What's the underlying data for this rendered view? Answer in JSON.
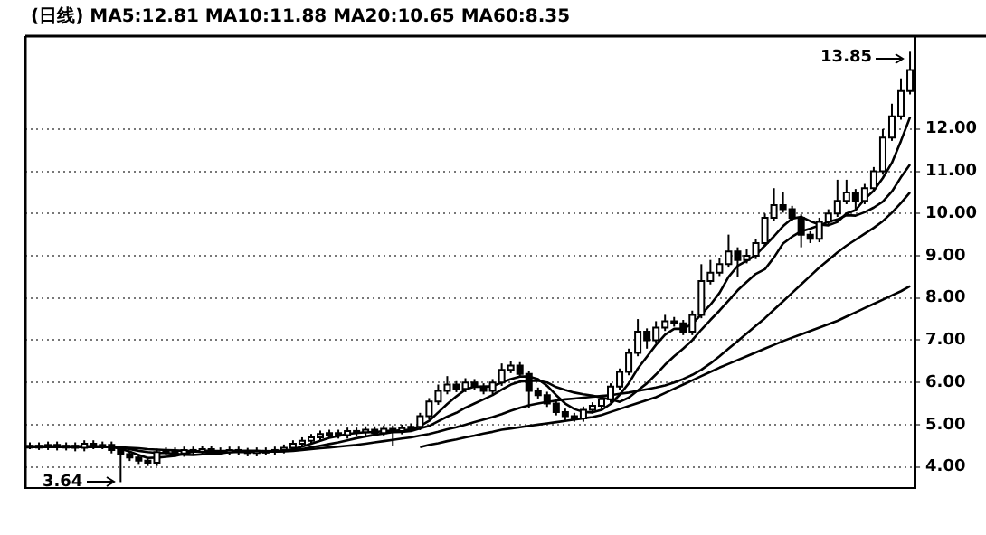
{
  "chart_data": {
    "type": "candlestick",
    "title": "(日线) MA5:12.81 MA10:11.88 MA20:10.65 MA60:8.35",
    "categories": [
      null,
      null,
      null,
      null,
      null,
      null,
      null,
      null,
      null,
      null,
      null,
      null,
      null,
      null,
      null,
      null,
      null,
      null,
      null,
      null,
      null,
      null,
      null,
      null,
      null,
      null,
      null,
      null,
      null,
      null,
      null,
      null,
      null,
      null,
      null,
      null,
      null,
      null,
      null,
      null,
      null,
      null,
      null,
      null,
      null,
      null,
      null,
      null,
      null,
      null,
      null,
      null,
      null,
      null,
      null,
      null,
      null,
      null,
      null,
      null,
      null,
      null,
      null,
      null,
      null,
      null,
      null,
      null,
      null,
      null,
      null,
      null,
      null,
      null,
      null,
      null,
      null,
      null,
      null,
      null,
      null,
      null,
      null,
      null,
      null,
      null,
      null,
      null,
      null,
      null,
      null,
      null,
      null,
      null,
      null,
      null,
      null,
      null
    ],
    "ohlc": [
      [
        4.48,
        4.58,
        4.42,
        4.5
      ],
      [
        4.5,
        4.58,
        4.4,
        4.48
      ],
      [
        4.48,
        4.6,
        4.4,
        4.52
      ],
      [
        4.52,
        4.6,
        4.39,
        4.47
      ],
      [
        4.47,
        4.58,
        4.39,
        4.5
      ],
      [
        4.5,
        4.58,
        4.37,
        4.45
      ],
      [
        4.45,
        4.63,
        4.37,
        4.55
      ],
      [
        4.55,
        4.63,
        4.42,
        4.5
      ],
      [
        4.5,
        4.6,
        4.42,
        4.52
      ],
      [
        4.52,
        4.6,
        4.32,
        4.4
      ],
      [
        4.4,
        4.48,
        3.64,
        4.3
      ],
      [
        4.3,
        4.38,
        4.14,
        4.22
      ],
      [
        4.22,
        4.3,
        4.07,
        4.15
      ],
      [
        4.15,
        4.23,
        4.02,
        4.1
      ],
      [
        4.1,
        4.43,
        4.02,
        4.35
      ],
      [
        4.35,
        4.46,
        4.27,
        4.38
      ],
      [
        4.38,
        4.46,
        4.24,
        4.32
      ],
      [
        4.32,
        4.48,
        4.24,
        4.4
      ],
      [
        4.4,
        4.48,
        4.28,
        4.36
      ],
      [
        4.36,
        4.5,
        4.28,
        4.42
      ],
      [
        4.42,
        4.5,
        4.3,
        4.38
      ],
      [
        4.38,
        4.46,
        4.27,
        4.35
      ],
      [
        4.35,
        4.48,
        4.27,
        4.4
      ],
      [
        4.4,
        4.48,
        4.29,
        4.37
      ],
      [
        4.37,
        4.45,
        4.25,
        4.33
      ],
      [
        4.33,
        4.46,
        4.25,
        4.38
      ],
      [
        4.38,
        4.46,
        4.28,
        4.36
      ],
      [
        4.36,
        4.48,
        4.28,
        4.4
      ],
      [
        4.4,
        4.53,
        4.32,
        4.45
      ],
      [
        4.45,
        4.63,
        4.37,
        4.55
      ],
      [
        4.55,
        4.7,
        4.47,
        4.62
      ],
      [
        4.62,
        4.78,
        4.54,
        4.7
      ],
      [
        4.7,
        4.86,
        4.62,
        4.78
      ],
      [
        4.78,
        4.88,
        4.7,
        4.8
      ],
      [
        4.8,
        4.88,
        4.67,
        4.75
      ],
      [
        4.75,
        4.93,
        4.67,
        4.85
      ],
      [
        4.85,
        4.93,
        4.74,
        4.82
      ],
      [
        4.82,
        4.96,
        4.74,
        4.88
      ],
      [
        4.88,
        4.96,
        4.72,
        4.8
      ],
      [
        4.8,
        4.98,
        4.72,
        4.9
      ],
      [
        4.9,
        4.98,
        4.5,
        4.85
      ],
      [
        4.85,
        5.0,
        4.77,
        4.92
      ],
      [
        4.92,
        5.03,
        4.84,
        4.95
      ],
      [
        4.95,
        5.28,
        4.87,
        5.2
      ],
      [
        5.2,
        5.63,
        5.12,
        5.55
      ],
      [
        5.55,
        5.95,
        5.47,
        5.8
      ],
      [
        5.8,
        6.15,
        5.72,
        5.95
      ],
      [
        5.95,
        6.03,
        5.77,
        5.85
      ],
      [
        5.85,
        6.1,
        5.77,
        6.0
      ],
      [
        6.0,
        6.08,
        5.82,
        5.9
      ],
      [
        5.9,
        5.98,
        5.72,
        5.8
      ],
      [
        5.8,
        6.08,
        5.72,
        6.0
      ],
      [
        6.0,
        6.45,
        5.92,
        6.3
      ],
      [
        6.3,
        6.5,
        6.22,
        6.4
      ],
      [
        6.4,
        6.48,
        6.12,
        6.2
      ],
      [
        6.2,
        6.28,
        5.4,
        5.8
      ],
      [
        5.8,
        5.88,
        5.62,
        5.7
      ],
      [
        5.7,
        5.78,
        5.42,
        5.5
      ],
      [
        5.5,
        5.58,
        5.22,
        5.3
      ],
      [
        5.3,
        5.38,
        5.1,
        5.2
      ],
      [
        5.2,
        5.28,
        5.07,
        5.15
      ],
      [
        5.15,
        5.43,
        5.07,
        5.35
      ],
      [
        5.35,
        5.53,
        5.27,
        5.45
      ],
      [
        5.45,
        5.68,
        5.37,
        5.6
      ],
      [
        5.6,
        5.98,
        5.52,
        5.9
      ],
      [
        5.9,
        6.33,
        5.82,
        6.25
      ],
      [
        6.25,
        6.8,
        6.17,
        6.7
      ],
      [
        6.7,
        7.5,
        6.62,
        7.2
      ],
      [
        7.2,
        7.28,
        6.8,
        7.0
      ],
      [
        7.0,
        7.45,
        6.92,
        7.3
      ],
      [
        7.3,
        7.6,
        7.22,
        7.45
      ],
      [
        7.45,
        7.55,
        7.32,
        7.4
      ],
      [
        7.4,
        7.48,
        7.12,
        7.2
      ],
      [
        7.2,
        7.7,
        7.12,
        7.6
      ],
      [
        7.6,
        8.8,
        7.52,
        8.4
      ],
      [
        8.4,
        8.9,
        8.32,
        8.6
      ],
      [
        8.6,
        8.95,
        8.52,
        8.8
      ],
      [
        8.8,
        9.5,
        8.72,
        9.1
      ],
      [
        9.1,
        9.2,
        8.5,
        8.9
      ],
      [
        8.9,
        9.15,
        8.82,
        9.0
      ],
      [
        9.0,
        9.4,
        8.92,
        9.3
      ],
      [
        9.3,
        10.0,
        9.22,
        9.9
      ],
      [
        9.9,
        10.6,
        9.82,
        10.2
      ],
      [
        10.2,
        10.5,
        10.02,
        10.1
      ],
      [
        10.1,
        10.18,
        9.82,
        9.9
      ],
      [
        9.9,
        9.98,
        9.2,
        9.5
      ],
      [
        9.5,
        9.58,
        9.3,
        9.4
      ],
      [
        9.4,
        9.9,
        9.32,
        9.8
      ],
      [
        9.8,
        10.1,
        9.72,
        10.0
      ],
      [
        10.0,
        10.8,
        9.92,
        10.3
      ],
      [
        10.3,
        10.8,
        10.22,
        10.5
      ],
      [
        10.5,
        10.58,
        10.1,
        10.3
      ],
      [
        10.3,
        10.7,
        10.22,
        10.6
      ],
      [
        10.6,
        11.1,
        10.52,
        11.0
      ],
      [
        11.0,
        12.0,
        10.92,
        11.8
      ],
      [
        11.8,
        12.6,
        11.72,
        12.3
      ],
      [
        12.3,
        13.2,
        12.22,
        12.9
      ],
      [
        12.9,
        13.85,
        12.82,
        13.4
      ]
    ],
    "series": [
      {
        "type": "line",
        "color": "#000000",
        "values": [
          4.49,
          4.49,
          4.49,
          4.49,
          4.49,
          4.49,
          4.49,
          4.49,
          4.49,
          4.47,
          4.43,
          4.36,
          4.28,
          4.21,
          4.22,
          4.24,
          4.26,
          4.31,
          4.36,
          4.38,
          4.38,
          4.37,
          4.38,
          4.38,
          4.37,
          4.37,
          4.37,
          4.37,
          4.38,
          4.42,
          4.48,
          4.55,
          4.62,
          4.69,
          4.73,
          4.78,
          4.8,
          4.82,
          4.82,
          4.85,
          4.85,
          4.87,
          4.88,
          4.97,
          5.09,
          5.29,
          5.49,
          5.67,
          5.83,
          5.9,
          5.9,
          5.91,
          6.0,
          6.08,
          6.14,
          6.14,
          6.08,
          5.92,
          5.7,
          5.5,
          5.37,
          5.3,
          5.29,
          5.35,
          5.49,
          5.71,
          5.98,
          6.33,
          6.61,
          6.89,
          7.13,
          7.27,
          7.27,
          7.39,
          7.61,
          7.84,
          8.12,
          8.5,
          8.76,
          8.88,
          9.02,
          9.24,
          9.46,
          9.7,
          9.88,
          9.92,
          9.82,
          9.74,
          9.72,
          9.8,
          10.0,
          10.08,
          10.34,
          10.54,
          10.84,
          11.2,
          11.72,
          12.28
        ]
      },
      {
        "type": "line",
        "color": "#000000",
        "values": [
          4.48,
          4.48,
          4.48,
          4.48,
          4.48,
          4.48,
          4.48,
          4.48,
          4.48,
          4.48,
          4.46,
          4.42,
          4.38,
          4.35,
          4.33,
          4.33,
          4.31,
          4.29,
          4.28,
          4.3,
          4.31,
          4.32,
          4.35,
          4.37,
          4.38,
          4.38,
          4.37,
          4.37,
          4.38,
          4.4,
          4.42,
          4.46,
          4.5,
          4.54,
          4.58,
          4.63,
          4.68,
          4.72,
          4.76,
          4.79,
          4.82,
          4.83,
          4.85,
          4.91,
          4.97,
          5.08,
          5.19,
          5.28,
          5.4,
          5.5,
          5.6,
          5.7,
          5.83,
          5.95,
          6.02,
          6.03,
          6.04,
          6.0,
          5.89,
          5.82,
          5.76,
          5.72,
          5.69,
          5.64,
          5.6,
          5.54,
          5.64,
          5.81,
          5.98,
          6.19,
          6.42,
          6.62,
          6.8,
          7.0,
          7.25,
          7.48,
          7.7,
          7.94,
          8.18,
          8.38,
          8.57,
          8.68,
          8.96,
          9.29,
          9.45,
          9.58,
          9.64,
          9.72,
          9.8,
          9.86,
          9.96,
          9.95,
          10.03,
          10.14,
          10.28,
          10.52,
          10.86,
          11.16
        ]
      },
      {
        "type": "line",
        "color": "#000000",
        "values": [
          4.47,
          4.47,
          4.47,
          4.47,
          4.47,
          4.47,
          4.47,
          4.47,
          4.47,
          4.47,
          4.46,
          4.45,
          4.44,
          4.42,
          4.41,
          4.4,
          4.39,
          4.38,
          4.37,
          4.36,
          4.35,
          4.35,
          4.35,
          4.35,
          4.35,
          4.35,
          4.36,
          4.36,
          4.37,
          4.38,
          4.4,
          4.42,
          4.44,
          4.46,
          4.48,
          4.5,
          4.52,
          4.55,
          4.58,
          4.61,
          4.64,
          4.67,
          4.7,
          4.74,
          4.78,
          4.83,
          4.89,
          4.94,
          5.0,
          5.06,
          5.12,
          5.18,
          5.25,
          5.33,
          5.4,
          5.46,
          5.5,
          5.54,
          5.57,
          5.6,
          5.62,
          5.64,
          5.66,
          5.68,
          5.7,
          5.73,
          5.76,
          5.8,
          5.84,
          5.88,
          5.93,
          6.0,
          6.08,
          6.18,
          6.3,
          6.45,
          6.62,
          6.8,
          6.98,
          7.16,
          7.34,
          7.52,
          7.72,
          7.92,
          8.12,
          8.32,
          8.52,
          8.72,
          8.9,
          9.08,
          9.24,
          9.38,
          9.52,
          9.66,
          9.82,
          10.02,
          10.25,
          10.5
        ]
      },
      {
        "type": "line",
        "color": "#000000",
        "values": [
          null,
          null,
          null,
          null,
          null,
          null,
          null,
          null,
          null,
          null,
          null,
          null,
          null,
          null,
          null,
          null,
          null,
          null,
          null,
          null,
          null,
          null,
          null,
          null,
          null,
          null,
          null,
          null,
          null,
          null,
          null,
          null,
          null,
          null,
          null,
          null,
          null,
          null,
          null,
          null,
          null,
          null,
          null,
          4.47,
          4.52,
          4.56,
          4.61,
          4.65,
          4.7,
          4.74,
          4.79,
          4.83,
          4.88,
          4.91,
          4.94,
          4.97,
          5.0,
          5.03,
          5.06,
          5.09,
          5.12,
          5.15,
          5.18,
          5.23,
          5.3,
          5.37,
          5.44,
          5.51,
          5.58,
          5.65,
          5.75,
          5.85,
          5.95,
          6.05,
          6.15,
          6.25,
          6.35,
          6.44,
          6.53,
          6.62,
          6.71,
          6.8,
          6.89,
          6.98,
          7.06,
          7.14,
          7.22,
          7.3,
          7.38,
          7.46,
          7.56,
          7.66,
          7.76,
          7.86,
          7.96,
          8.06,
          8.16,
          8.28
        ]
      }
    ],
    "annotations": [
      "13.85",
      "3.64"
    ],
    "ylim": [
      3.5,
      14.2
    ],
    "yticks": [
      {
        "value": 4,
        "label": "4.00"
      },
      {
        "value": 5,
        "label": "5.00"
      },
      {
        "value": 6,
        "label": "6.00"
      },
      {
        "value": 7,
        "label": "7.00"
      },
      {
        "value": 8,
        "label": "8.00"
      },
      {
        "value": 9,
        "label": "9.00"
      },
      {
        "value": 10,
        "label": "10.00"
      },
      {
        "value": 11,
        "label": "11.00"
      },
      {
        "value": 12,
        "label": "12.00"
      }
    ],
    "grid": "y",
    "legend": false,
    "marker": "none",
    "line_style": "solid"
  }
}
